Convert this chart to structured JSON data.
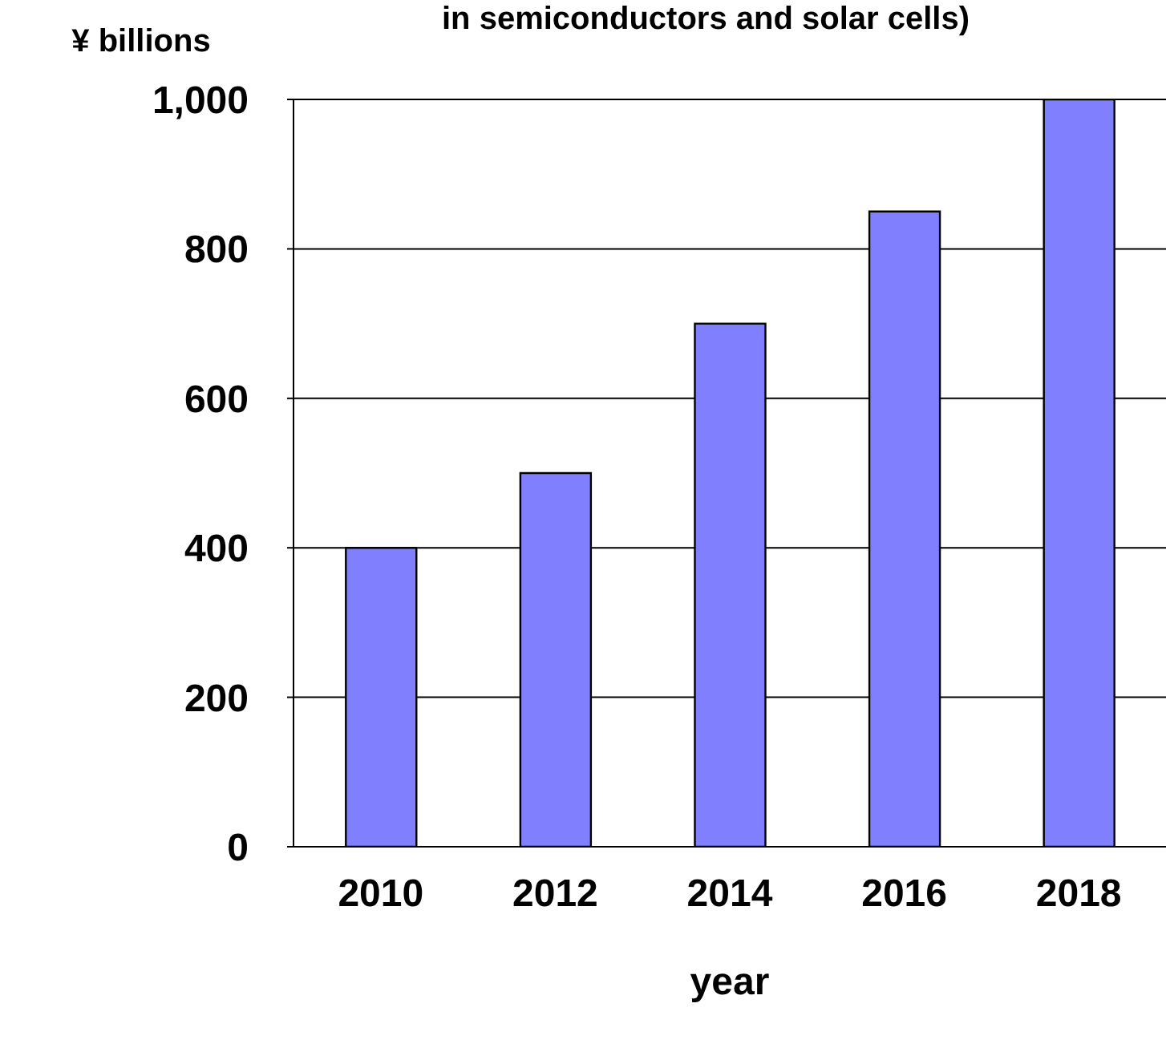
{
  "chart_data": {
    "type": "bar",
    "title": "in semiconductors and solar cells)",
    "ylabel": "¥ billions",
    "xlabel": "year",
    "categories": [
      "2010",
      "2012",
      "2014",
      "2016",
      "2018"
    ],
    "values": [
      400,
      500,
      700,
      850,
      1000
    ],
    "color": "#8080ff",
    "ylim": [
      0,
      1000
    ],
    "yticks": [
      0,
      200,
      400,
      600,
      800,
      {
        "value": 1000,
        "label": "1,000"
      }
    ],
    "grid": "y"
  }
}
